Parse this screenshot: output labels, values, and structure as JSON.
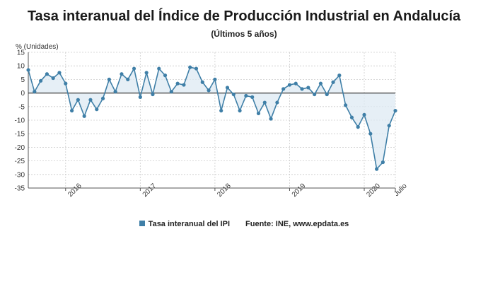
{
  "header": {
    "title": "Tasa interanual del Índice de Producción Industrial en Andalucía",
    "subtitle": "(Últimos 5 años)"
  },
  "legend": {
    "series_label": "Tasa interanual del IPI",
    "source": "Fuente: INE, www.epdata.es"
  },
  "colors": {
    "line": "#3f7fa7",
    "fill": "#dde9f3",
    "grid": "#cccccc",
    "zero_line": "#333333"
  },
  "chart_data": {
    "type": "area",
    "ylabel": "% (Unidades)",
    "ylim": [
      -35,
      15
    ],
    "yticks": [
      15,
      10,
      5,
      0,
      -5,
      -10,
      -15,
      -20,
      -25,
      -30,
      -35
    ],
    "x_start": "2015-07",
    "x_end": "2020-07",
    "x_tick_labels": [
      "2016",
      "2017",
      "2018",
      "2019",
      "2020",
      "Julio"
    ],
    "grid": true,
    "legend_position": "bottom",
    "series": [
      {
        "name": "Tasa interanual del IPI",
        "values": [
          8.5,
          0.5,
          4.5,
          7,
          5.5,
          7.5,
          3.5,
          -6.5,
          -2.5,
          -8.5,
          -2.5,
          -6,
          -2,
          5,
          0.5,
          7,
          5,
          9,
          -1.5,
          7.5,
          -0.5,
          9,
          6.5,
          0.5,
          3.5,
          3,
          9.5,
          9,
          4,
          1,
          5,
          -6.5,
          2,
          -0.5,
          -6.5,
          -1,
          -1.5,
          -7.5,
          -3.5,
          -9.5,
          -3.5,
          1.5,
          3,
          3.5,
          1.5,
          2,
          -0.5,
          3.5,
          -0.5,
          4,
          6.5,
          -4.5,
          -9,
          -12.5,
          -8,
          -15,
          -28,
          -25.5,
          -12,
          -6.5
        ]
      }
    ]
  }
}
